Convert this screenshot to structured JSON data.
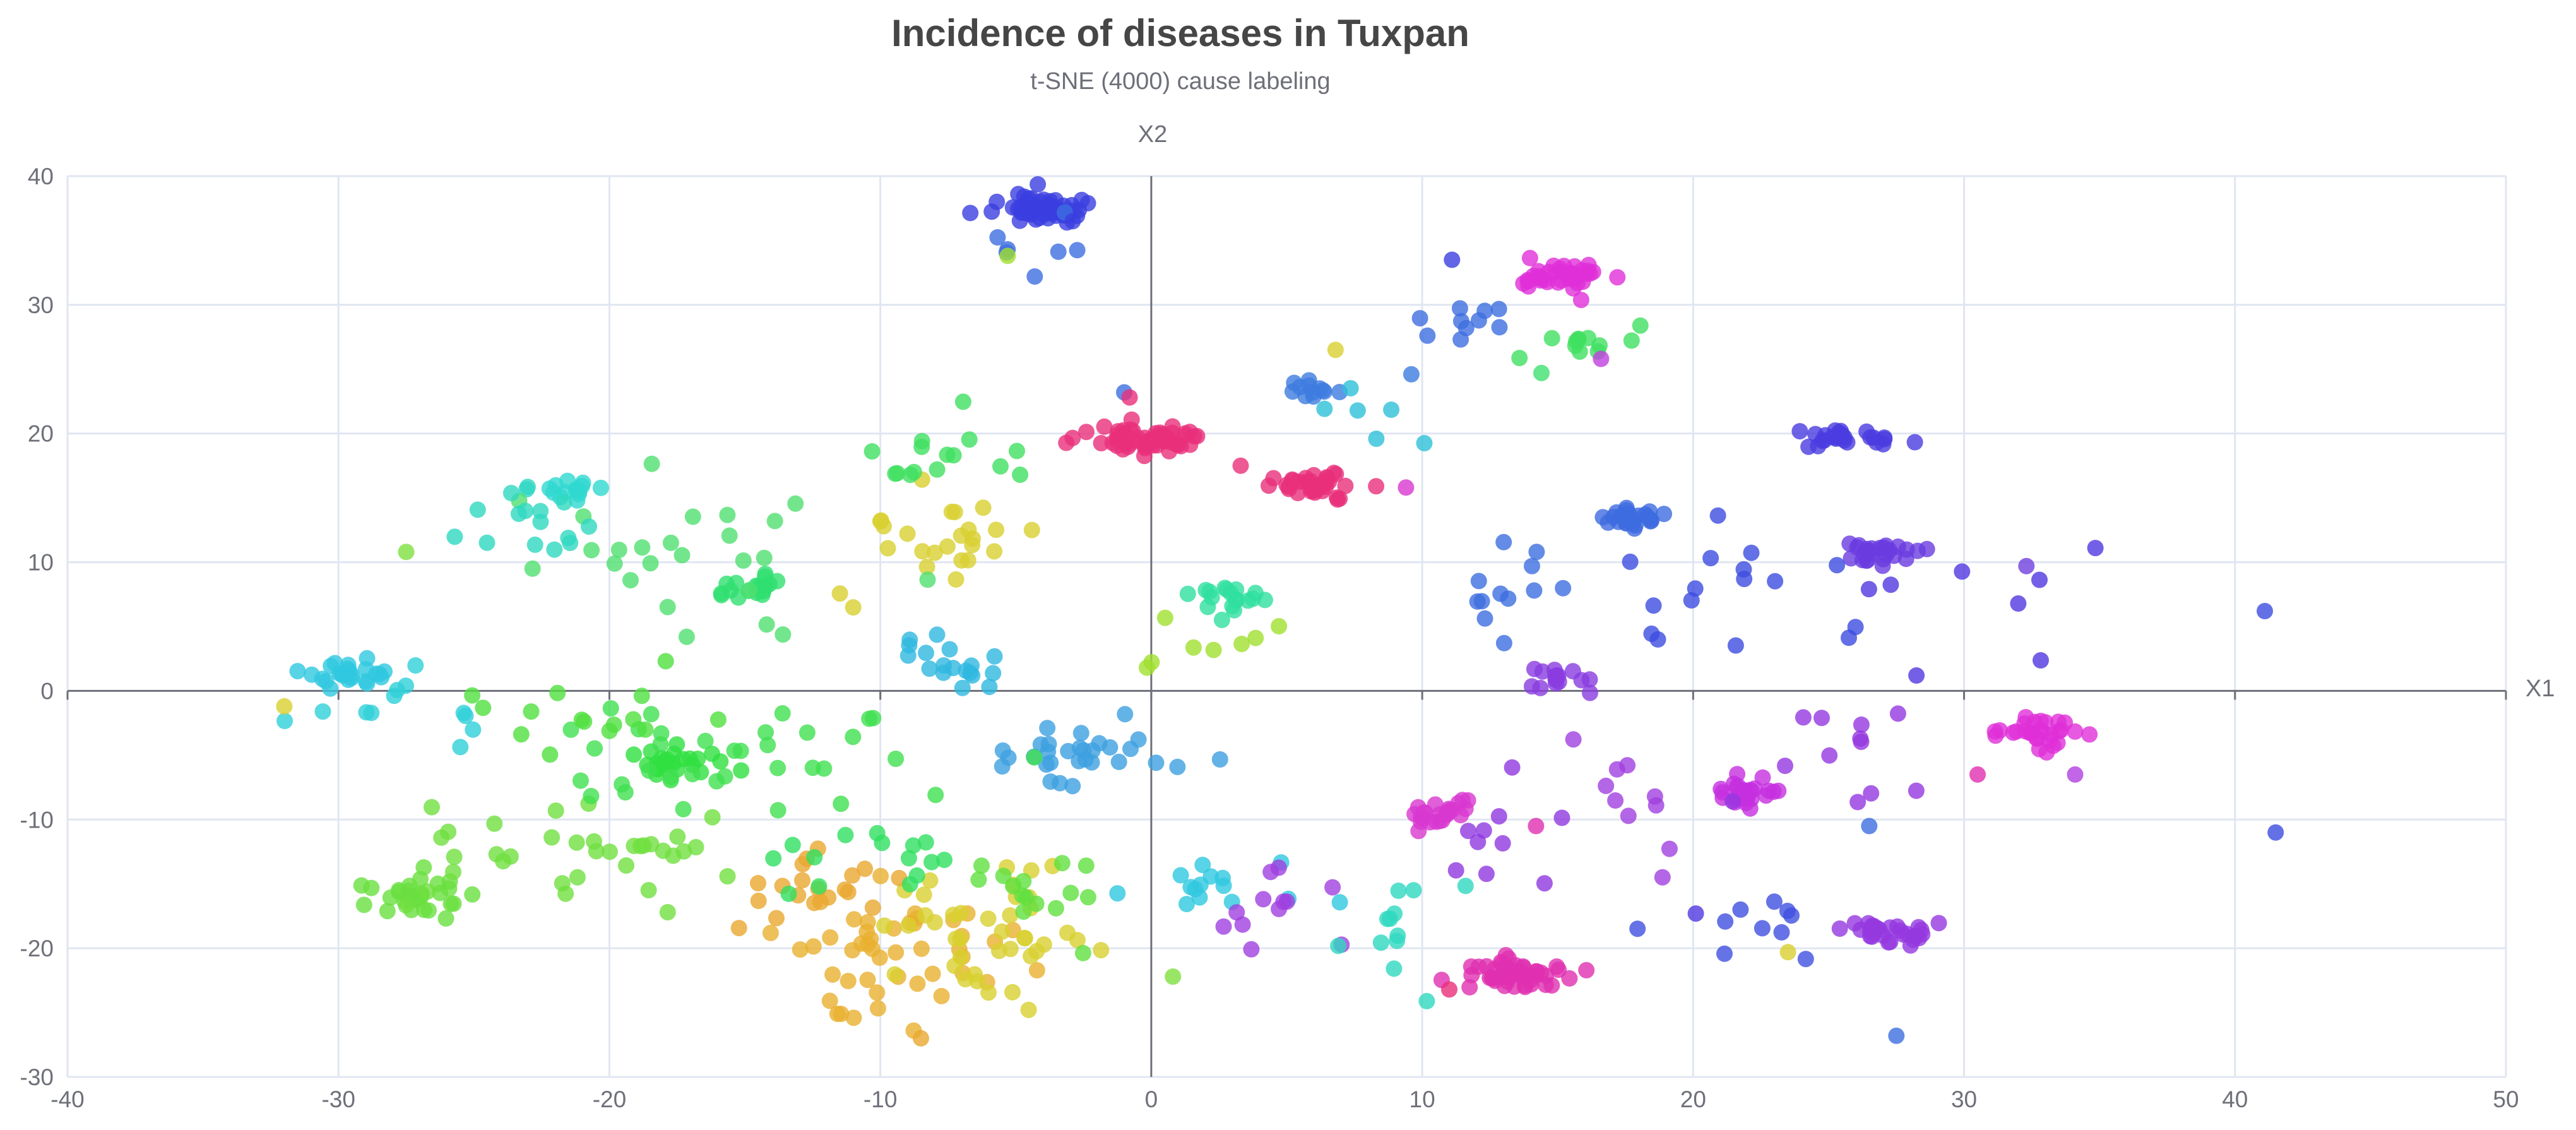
{
  "chart_data": {
    "type": "scatter",
    "title": "Incidence of diseases in Tuxpan",
    "subtitle": "t-SNE (4000) cause labeling",
    "xlabel": "X1",
    "ylabel": "X2",
    "xlim": [
      -40,
      50
    ],
    "ylim": [
      -30,
      40
    ],
    "xticks": [
      -40,
      -30,
      -20,
      -10,
      0,
      10,
      20,
      30,
      40,
      50
    ],
    "yticks": [
      -30,
      -20,
      -10,
      0,
      10,
      20,
      30,
      40
    ],
    "grid": true,
    "color_encoding": "hue by cause label",
    "clusters": [
      {
        "cx": -4.2,
        "cy": 37.5,
        "sx": 0.9,
        "sy": 0.6,
        "n": 60,
        "color": "#3b3fe0"
      },
      {
        "cx": -4.5,
        "cy": 34.5,
        "sx": 1.2,
        "sy": 2.0,
        "n": 6,
        "color": "#3d6ee0"
      },
      {
        "cx": -0.3,
        "cy": 19.6,
        "sx": 1.1,
        "sy": 0.55,
        "n": 70,
        "color": "#e8307a"
      },
      {
        "cx": 5.8,
        "cy": 16.0,
        "sx": 0.7,
        "sy": 0.5,
        "n": 40,
        "color": "#e8307a"
      },
      {
        "cx": 15.0,
        "cy": 32.2,
        "sx": 1.0,
        "sy": 0.6,
        "n": 40,
        "color": "#e030d8"
      },
      {
        "cx": 13.3,
        "cy": -22.0,
        "sx": 1.0,
        "sy": 0.6,
        "n": 50,
        "color": "#e030b0"
      },
      {
        "cx": 32.6,
        "cy": -3.0,
        "sx": 0.8,
        "sy": 0.6,
        "n": 30,
        "color": "#e030d8"
      },
      {
        "cx": 21.8,
        "cy": -8.0,
        "sx": 0.8,
        "sy": 0.6,
        "n": 25,
        "color": "#c530e0"
      },
      {
        "cx": 10.8,
        "cy": -9.5,
        "sx": 0.7,
        "sy": 0.6,
        "n": 25,
        "color": "#d838d0"
      },
      {
        "cx": 27.3,
        "cy": -18.8,
        "sx": 0.8,
        "sy": 0.6,
        "n": 30,
        "color": "#9538e0"
      },
      {
        "cx": 25.5,
        "cy": 19.6,
        "sx": 0.8,
        "sy": 0.5,
        "n": 25,
        "color": "#4a3ce0"
      },
      {
        "cx": 27.0,
        "cy": 10.8,
        "sx": 0.8,
        "sy": 0.5,
        "n": 25,
        "color": "#6a3ce0"
      },
      {
        "cx": 17.8,
        "cy": 13.5,
        "sx": 0.8,
        "sy": 0.5,
        "n": 25,
        "color": "#3d6be0"
      },
      {
        "cx": 14.8,
        "cy": 0.8,
        "sx": 0.6,
        "sy": 0.5,
        "n": 15,
        "color": "#8a3ce0"
      },
      {
        "cx": 6.0,
        "cy": 23.2,
        "sx": 0.5,
        "sy": 0.4,
        "n": 12,
        "color": "#3d7ce0"
      },
      {
        "cx": -29.5,
        "cy": 1.2,
        "sx": 0.8,
        "sy": 0.6,
        "n": 25,
        "color": "#30c8e0"
      },
      {
        "cx": -21.5,
        "cy": 15.3,
        "sx": 0.6,
        "sy": 0.5,
        "n": 15,
        "color": "#30d8d0"
      },
      {
        "cx": -27.5,
        "cy": -16.0,
        "sx": 1.0,
        "sy": 0.7,
        "n": 30,
        "color": "#6ae040"
      },
      {
        "cx": -17.5,
        "cy": -5.5,
        "sx": 0.8,
        "sy": 0.6,
        "n": 25,
        "color": "#30e040"
      },
      {
        "cx": -14.5,
        "cy": 8.0,
        "sx": 0.7,
        "sy": 0.6,
        "n": 20,
        "color": "#30e070"
      },
      {
        "cx": 2.6,
        "cy": 7.2,
        "sx": 0.7,
        "sy": 0.5,
        "n": 18,
        "color": "#30e0a0"
      },
      {
        "cx": -2.2,
        "cy": -4.8,
        "sx": 1.5,
        "sy": 1.2,
        "n": 30,
        "color": "#3da0e0"
      },
      {
        "cx": -7.0,
        "cy": 2.0,
        "sx": 1.2,
        "sy": 1.2,
        "n": 18,
        "color": "#30b8e0"
      },
      {
        "cx": -9.5,
        "cy": -21.0,
        "sx": 2.0,
        "sy": 2.5,
        "n": 45,
        "color": "#e8b030"
      },
      {
        "cx": -6.0,
        "cy": -19.0,
        "sx": 2.0,
        "sy": 2.5,
        "n": 40,
        "color": "#d8d030"
      },
      {
        "cx": -13.0,
        "cy": -15.5,
        "sx": 1.5,
        "sy": 1.5,
        "n": 20,
        "color": "#e8a830"
      },
      {
        "cx": -7.5,
        "cy": 12.0,
        "sx": 2.0,
        "sy": 2.0,
        "n": 25,
        "color": "#d8d030"
      },
      {
        "cx": -8.0,
        "cy": 18.5,
        "sx": 1.5,
        "sy": 1.5,
        "n": 15,
        "color": "#40e060"
      },
      {
        "cx": -20.0,
        "cy": -12.0,
        "sx": 3.5,
        "sy": 2.0,
        "n": 35,
        "color": "#70e040"
      },
      {
        "cx": -15.0,
        "cy": -5.0,
        "sx": 3.0,
        "sy": 2.5,
        "n": 35,
        "color": "#40e050"
      },
      {
        "cx": -21.0,
        "cy": -2.0,
        "sx": 2.0,
        "sy": 2.0,
        "n": 15,
        "color": "#50e040"
      },
      {
        "cx": -18.0,
        "cy": 10.0,
        "sx": 3.0,
        "sy": 3.0,
        "n": 25,
        "color": "#50e070"
      },
      {
        "cx": -23.0,
        "cy": 12.0,
        "sx": 1.5,
        "sy": 2.0,
        "n": 15,
        "color": "#30d8c0"
      },
      {
        "cx": -27.5,
        "cy": -1.0,
        "sx": 2.5,
        "sy": 1.5,
        "n": 12,
        "color": "#30d0d8"
      },
      {
        "cx": -10.0,
        "cy": -13.0,
        "sx": 2.5,
        "sy": 1.5,
        "n": 15,
        "color": "#30e060"
      },
      {
        "cx": -4.0,
        "cy": -16.0,
        "sx": 1.5,
        "sy": 2.0,
        "n": 15,
        "color": "#60e040"
      },
      {
        "cx": 2.0,
        "cy": -15.5,
        "sx": 2.0,
        "sy": 1.5,
        "n": 15,
        "color": "#30c8e0"
      },
      {
        "cx": 5.0,
        "cy": -17.0,
        "sx": 1.5,
        "sy": 1.5,
        "n": 12,
        "color": "#a040e0"
      },
      {
        "cx": 9.5,
        "cy": -19.0,
        "sx": 1.5,
        "sy": 2.0,
        "n": 12,
        "color": "#30d8c0"
      },
      {
        "cx": 13.5,
        "cy": 8.0,
        "sx": 1.5,
        "sy": 2.0,
        "n": 12,
        "color": "#3d6ee0"
      },
      {
        "cx": 12.0,
        "cy": 28.5,
        "sx": 1.0,
        "sy": 1.0,
        "n": 10,
        "color": "#3d6ee0"
      },
      {
        "cx": 15.8,
        "cy": 27.0,
        "sx": 1.2,
        "sy": 0.8,
        "n": 12,
        "color": "#40e060"
      },
      {
        "cx": 22.0,
        "cy": 8.0,
        "sx": 2.5,
        "sy": 3.0,
        "n": 15,
        "color": "#3d4ce0"
      },
      {
        "cx": 25.0,
        "cy": -4.0,
        "sx": 2.5,
        "sy": 2.0,
        "n": 12,
        "color": "#9538e0"
      },
      {
        "cx": 22.5,
        "cy": -18.5,
        "sx": 1.5,
        "sy": 1.5,
        "n": 10,
        "color": "#4050e0"
      },
      {
        "cx": 17.5,
        "cy": -8.0,
        "sx": 1.5,
        "sy": 3.0,
        "n": 10,
        "color": "#a040e0"
      },
      {
        "cx": 13.0,
        "cy": -12.0,
        "sx": 1.5,
        "sy": 3.0,
        "n": 10,
        "color": "#9038e0"
      },
      {
        "cx": 30.0,
        "cy": 7.0,
        "sx": 2.0,
        "sy": 3.0,
        "n": 8,
        "color": "#5038e0"
      },
      {
        "cx": 2.0,
        "cy": 3.0,
        "sx": 1.5,
        "sy": 1.5,
        "n": 8,
        "color": "#a0e030"
      },
      {
        "cx": 7.5,
        "cy": 23.5,
        "sx": 1.5,
        "sy": 2.0,
        "n": 6,
        "color": "#30c0d8"
      }
    ],
    "points": [
      {
        "x": 11.1,
        "y": 33.5,
        "color": "#3b3fe0"
      },
      {
        "x": 9.6,
        "y": 24.6,
        "color": "#3d7ce0"
      },
      {
        "x": -1.0,
        "y": 23.2,
        "color": "#3d6ee0"
      },
      {
        "x": -0.8,
        "y": 22.8,
        "color": "#e8307a"
      },
      {
        "x": 3.3,
        "y": 17.5,
        "color": "#e8307a"
      },
      {
        "x": 8.3,
        "y": 15.9,
        "color": "#e8307a"
      },
      {
        "x": 9.4,
        "y": 15.8,
        "color": "#d838d0"
      },
      {
        "x": 41.1,
        "y": 6.2,
        "color": "#3d4ce0"
      },
      {
        "x": 41.5,
        "y": -11.0,
        "color": "#3d4ce0"
      },
      {
        "x": 27.5,
        "y": -26.8,
        "color": "#3d6ee0"
      },
      {
        "x": 32.3,
        "y": 9.7,
        "color": "#7040e0"
      },
      {
        "x": 30.5,
        "y": -6.5,
        "color": "#e030b0"
      },
      {
        "x": 34.1,
        "y": -6.5,
        "color": "#b040e0"
      },
      {
        "x": -32.0,
        "y": -1.2,
        "color": "#d8d030"
      },
      {
        "x": -27.5,
        "y": 10.8,
        "color": "#80e040"
      },
      {
        "x": -4.3,
        "y": 32.2,
        "color": "#3d6ee0"
      },
      {
        "x": -5.3,
        "y": 33.8,
        "color": "#a0e030"
      },
      {
        "x": -5.7,
        "y": 38.0,
        "color": "#3b3fe0"
      },
      {
        "x": -2.9,
        "y": 36.5,
        "color": "#3b3fe0"
      },
      {
        "x": 6.8,
        "y": 26.5,
        "color": "#d8d030"
      },
      {
        "x": 16.6,
        "y": 25.8,
        "color": "#c040e0"
      },
      {
        "x": 14.4,
        "y": 24.7,
        "color": "#40e070"
      },
      {
        "x": 18.7,
        "y": 4.0,
        "color": "#3d4ce0"
      },
      {
        "x": 20.1,
        "y": -17.3,
        "color": "#5038e0"
      },
      {
        "x": 26.5,
        "y": -10.5,
        "color": "#3d6ee0"
      },
      {
        "x": 11.0,
        "y": -23.2,
        "color": "#e8307a"
      },
      {
        "x": 14.2,
        "y": -10.5,
        "color": "#e030b0"
      },
      {
        "x": 0.8,
        "y": -22.2,
        "color": "#80e040"
      },
      {
        "x": -8.5,
        "y": -27.0,
        "color": "#e8a830"
      },
      {
        "x": 23.5,
        "y": -20.3,
        "color": "#d8d030"
      }
    ]
  }
}
